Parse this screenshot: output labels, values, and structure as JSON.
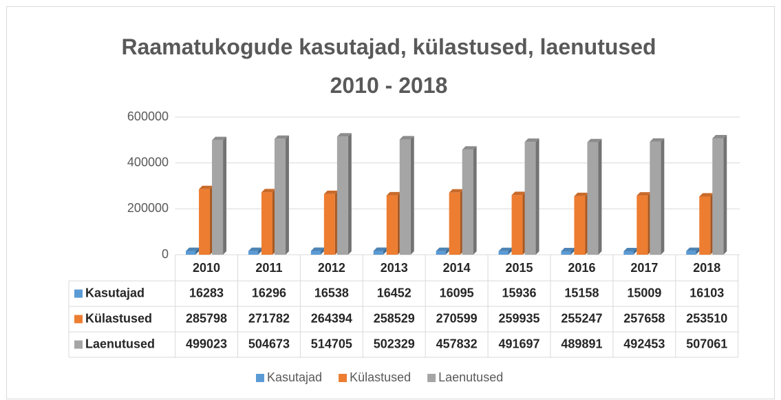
{
  "chart_data": {
    "type": "bar3d",
    "title": "Raamatukogude kasutajad, külastused, laenutused 2010 - 2018",
    "categories": [
      "2010",
      "2011",
      "2012",
      "2013",
      "2014",
      "2015",
      "2016",
      "2017",
      "2018"
    ],
    "series": [
      {
        "name": "Kasutajad",
        "color": "#5b9bd5",
        "values": [
          16283,
          16296,
          16538,
          16452,
          16095,
          15936,
          15158,
          15009,
          16103
        ]
      },
      {
        "name": "Külastused",
        "color": "#ed7d31",
        "values": [
          285798,
          271782,
          264394,
          258529,
          270599,
          259935,
          255247,
          257658,
          253510
        ]
      },
      {
        "name": "Laenutused",
        "color": "#a5a5a5",
        "values": [
          499023,
          504673,
          514705,
          502329,
          457832,
          491697,
          489891,
          492453,
          507061
        ]
      }
    ],
    "ylim": [
      0,
      600000
    ],
    "yticks": [
      0,
      200000,
      400000,
      600000
    ],
    "grid": true,
    "legend": "bottom"
  }
}
